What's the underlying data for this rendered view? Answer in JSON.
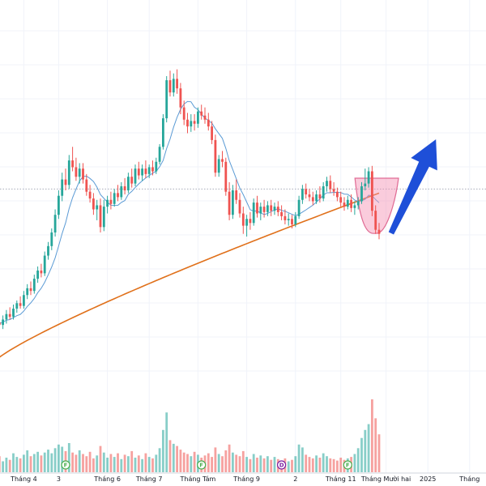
{
  "chart_data": {
    "type": "candlestick",
    "title": "",
    "xlabel": "",
    "ylabel": "",
    "x_tick_labels": [
      "Tháng 4",
      "3",
      "Tháng 6",
      "Tháng 7",
      "Tháng Tám",
      "Tháng 9",
      "2",
      "Tháng 11",
      "Tháng Mười hai",
      "2025",
      "Tháng"
    ],
    "colors": {
      "up": "#26a69a",
      "down": "#ef5350",
      "ma_short": "#5b9bd5",
      "ma_long": "#e0701a",
      "annotation_cup": "#f48fb1",
      "annotation_arrow": "#1e4fd8",
      "event_marker": "#4caf50",
      "dividend_marker": "#7b1fa2",
      "grid": "#f0f3fa"
    },
    "series": [
      {
        "name": "",
        "kind": "candles",
        "values": [
          [
            0,
            38.0,
            38.6,
            37.6,
            38.3
          ],
          [
            1,
            38.3,
            38.9,
            37.9,
            38.1
          ],
          [
            2,
            38.1,
            38.8,
            37.8,
            38.5
          ],
          [
            3,
            38.5,
            39.2,
            38.2,
            38.9
          ],
          [
            4,
            38.9,
            39.4,
            38.5,
            38.7
          ],
          [
            5,
            38.7,
            39.6,
            38.5,
            39.3
          ],
          [
            6,
            39.3,
            39.9,
            39.0,
            39.7
          ],
          [
            7,
            39.7,
            40.2,
            39.3,
            39.5
          ],
          [
            8,
            39.5,
            40.6,
            39.3,
            40.3
          ],
          [
            9,
            40.3,
            41.1,
            40.0,
            40.8
          ],
          [
            10,
            40.8,
            41.3,
            40.3,
            40.6
          ],
          [
            11,
            40.6,
            41.8,
            40.4,
            41.5
          ],
          [
            12,
            41.5,
            42.4,
            41.2,
            42.1
          ],
          [
            13,
            42.1,
            42.6,
            41.6,
            41.9
          ],
          [
            14,
            41.9,
            43.5,
            41.7,
            43.2
          ],
          [
            15,
            43.2,
            44.2,
            42.9,
            43.9
          ],
          [
            16,
            43.9,
            45.2,
            43.6,
            44.9
          ],
          [
            17,
            44.9,
            46.6,
            44.6,
            46.2
          ],
          [
            18,
            46.2,
            48.0,
            45.9,
            47.6
          ],
          [
            19,
            47.6,
            49.3,
            47.2,
            48.8
          ],
          [
            20,
            48.8,
            49.6,
            48.0,
            48.4
          ],
          [
            21,
            48.4,
            50.6,
            48.1,
            50.2
          ],
          [
            22,
            50.2,
            51.2,
            49.4,
            49.7
          ],
          [
            23,
            49.7,
            50.4,
            48.7,
            49.0
          ],
          [
            24,
            49.0,
            50.0,
            48.5,
            49.6
          ],
          [
            25,
            49.6,
            50.0,
            48.5,
            48.8
          ],
          [
            26,
            48.8,
            49.2,
            47.6,
            47.9
          ],
          [
            27,
            47.9,
            48.4,
            47.1,
            47.4
          ],
          [
            28,
            47.4,
            47.8,
            46.2,
            46.6
          ],
          [
            29,
            46.6,
            47.3,
            45.8,
            46.9
          ],
          [
            30,
            46.9,
            47.4,
            44.9,
            45.3
          ],
          [
            31,
            45.3,
            47.3,
            45.0,
            46.8
          ],
          [
            32,
            46.8,
            47.6,
            46.3,
            47.3
          ],
          [
            33,
            47.3,
            47.9,
            46.6,
            47.0
          ],
          [
            34,
            47.0,
            48.1,
            46.8,
            47.8
          ],
          [
            35,
            47.8,
            48.4,
            47.2,
            47.5
          ],
          [
            36,
            47.5,
            48.6,
            47.3,
            48.3
          ],
          [
            37,
            48.3,
            48.9,
            47.7,
            48.0
          ],
          [
            38,
            48.0,
            49.3,
            47.8,
            49.0
          ],
          [
            39,
            49.0,
            49.6,
            48.2,
            48.5
          ],
          [
            40,
            48.5,
            49.9,
            48.3,
            49.6
          ],
          [
            41,
            49.6,
            50.1,
            48.8,
            49.1
          ],
          [
            42,
            49.1,
            49.9,
            48.7,
            49.6
          ],
          [
            43,
            49.6,
            50.2,
            48.9,
            49.2
          ],
          [
            44,
            49.2,
            49.9,
            48.9,
            49.7
          ],
          [
            45,
            49.7,
            50.2,
            49.1,
            49.4
          ],
          [
            46,
            49.4,
            50.4,
            49.2,
            50.1
          ],
          [
            47,
            50.1,
            51.4,
            49.9,
            51.2
          ],
          [
            48,
            51.2,
            53.6,
            51.0,
            53.3
          ],
          [
            49,
            53.3,
            56.4,
            53.0,
            56.1
          ],
          [
            50,
            56.1,
            56.8,
            54.9,
            55.2
          ],
          [
            51,
            55.2,
            56.6,
            54.9,
            56.2
          ],
          [
            52,
            56.2,
            56.9,
            55.1,
            55.5
          ],
          [
            53,
            55.5,
            55.9,
            53.6,
            54.1
          ],
          [
            54,
            54.1,
            54.6,
            52.8,
            53.2
          ],
          [
            55,
            53.2,
            53.7,
            52.2,
            52.7
          ],
          [
            56,
            52.7,
            53.6,
            52.3,
            53.1
          ],
          [
            57,
            53.1,
            53.6,
            52.4,
            52.9
          ],
          [
            58,
            52.9,
            54.1,
            52.6,
            53.8
          ],
          [
            59,
            53.8,
            54.3,
            53.2,
            53.5
          ],
          [
            60,
            53.5,
            54.1,
            52.9,
            53.2
          ],
          [
            61,
            53.2,
            53.7,
            52.4,
            52.7
          ],
          [
            62,
            52.7,
            53.1,
            51.4,
            51.7
          ],
          [
            63,
            51.7,
            52.1,
            49.0,
            49.3
          ],
          [
            64,
            49.3,
            50.6,
            49.0,
            50.3
          ],
          [
            65,
            50.3,
            50.9,
            49.7,
            50.1
          ],
          [
            66,
            50.1,
            50.4,
            47.6,
            47.9
          ],
          [
            67,
            47.9,
            48.6,
            45.8,
            46.2
          ],
          [
            68,
            46.2,
            48.4,
            45.9,
            48.0
          ],
          [
            69,
            48.0,
            48.8,
            47.0,
            47.3
          ],
          [
            70,
            47.3,
            47.8,
            46.0,
            46.3
          ],
          [
            71,
            46.3,
            46.8,
            44.8,
            45.4
          ],
          [
            72,
            45.4,
            46.2,
            44.6,
            45.9
          ],
          [
            73,
            45.9,
            46.4,
            45.1,
            45.6
          ],
          [
            74,
            45.6,
            47.4,
            45.4,
            47.1
          ],
          [
            75,
            47.1,
            47.6,
            46.0,
            46.3
          ],
          [
            76,
            46.3,
            47.1,
            45.8,
            46.8
          ],
          [
            77,
            46.8,
            47.3,
            46.0,
            46.4
          ],
          [
            78,
            46.4,
            47.2,
            46.1,
            46.9
          ],
          [
            79,
            46.9,
            47.3,
            46.1,
            46.5
          ],
          [
            80,
            46.5,
            47.1,
            46.2,
            46.8
          ],
          [
            81,
            46.8,
            47.2,
            46.1,
            46.4
          ],
          [
            82,
            46.4,
            46.9,
            45.8,
            46.1
          ],
          [
            83,
            46.1,
            46.6,
            45.5,
            45.8
          ],
          [
            84,
            45.8,
            46.3,
            45.4,
            45.9
          ],
          [
            85,
            45.9,
            46.2,
            45.2,
            45.5
          ],
          [
            86,
            45.5,
            46.4,
            45.3,
            46.1
          ],
          [
            87,
            46.1,
            47.6,
            45.9,
            47.3
          ],
          [
            88,
            47.3,
            48.4,
            47.0,
            48.1
          ],
          [
            89,
            48.1,
            48.5,
            47.4,
            47.7
          ],
          [
            90,
            47.7,
            48.1,
            47.2,
            47.5
          ],
          [
            91,
            47.5,
            47.9,
            46.9,
            47.2
          ],
          [
            92,
            47.2,
            48.0,
            47.0,
            47.7
          ],
          [
            93,
            47.7,
            48.3,
            47.1,
            47.4
          ],
          [
            94,
            47.4,
            48.6,
            47.2,
            48.3
          ],
          [
            95,
            48.3,
            49.0,
            47.9,
            48.7
          ],
          [
            96,
            48.7,
            49.1,
            47.8,
            48.1
          ],
          [
            97,
            48.1,
            48.6,
            47.6,
            47.9
          ],
          [
            98,
            47.9,
            48.2,
            47.2,
            47.5
          ],
          [
            99,
            47.5,
            47.9,
            46.8,
            47.1
          ],
          [
            100,
            47.1,
            47.5,
            46.5,
            46.8
          ],
          [
            101,
            46.8,
            47.6,
            46.6,
            47.3
          ],
          [
            102,
            47.3,
            47.7,
            46.4,
            46.7
          ],
          [
            103,
            46.7,
            47.2,
            46.2,
            46.9
          ],
          [
            104,
            46.9,
            47.5,
            46.6,
            47.2
          ],
          [
            105,
            47.2,
            48.6,
            47.0,
            48.3
          ],
          [
            106,
            48.3,
            49.6,
            48.0,
            48.5
          ],
          [
            107,
            48.5,
            49.7,
            48.2,
            49.4
          ],
          [
            108,
            49.4,
            49.8,
            46.1,
            46.5
          ],
          [
            109,
            46.5,
            46.9,
            44.8,
            45.1
          ],
          [
            110,
            45.1,
            45.6,
            44.4,
            44.8
          ]
        ]
      },
      {
        "name": "",
        "kind": "line",
        "color_key": "ma_short",
        "note": "short moving average"
      },
      {
        "name": "",
        "kind": "line",
        "color_key": "ma_long",
        "note": "long moving average"
      }
    ],
    "volume": [
      18,
      22,
      15,
      20,
      17,
      26,
      21,
      19,
      24,
      30,
      22,
      25,
      28,
      23,
      27,
      31,
      26,
      33,
      38,
      35,
      29,
      40,
      27,
      24,
      30,
      25,
      22,
      28,
      19,
      23,
      36,
      27,
      20,
      25,
      21,
      26,
      18,
      24,
      22,
      29,
      20,
      23,
      18,
      26,
      21,
      19,
      24,
      33,
      58,
      82,
      44,
      39,
      36,
      31,
      27,
      25,
      22,
      28,
      24,
      20,
      23,
      26,
      21,
      34,
      25,
      22,
      30,
      38,
      27,
      24,
      22,
      29,
      21,
      18,
      25,
      20,
      23,
      19,
      22,
      17,
      21,
      18,
      16,
      19,
      15,
      17,
      22,
      38,
      34,
      24,
      21,
      19,
      23,
      20,
      26,
      22,
      19,
      18,
      16,
      20,
      17,
      19,
      21,
      25,
      33,
      47,
      58,
      66,
      100,
      74,
      52
    ],
    "x_tick_candle_index": [
      8,
      18,
      32,
      44,
      58,
      72,
      86,
      99,
      112,
      124,
      136
    ],
    "events": [
      {
        "label": "F",
        "index": 20,
        "color_key": "event_marker"
      },
      {
        "label": "F",
        "index": 59,
        "color_key": "event_marker"
      },
      {
        "label": "D",
        "index": 82,
        "color_key": "dividend_marker"
      },
      {
        "label": "F",
        "index": 101,
        "color_key": "event_marker"
      }
    ],
    "annotations": [
      {
        "kind": "cup",
        "from_index": 104,
        "to_index": 110,
        "color_key": "annotation_cup"
      },
      {
        "kind": "arrow-up",
        "from_index": 113,
        "to_index": 124,
        "color_key": "annotation_arrow"
      }
    ],
    "price_line": 48.1,
    "ylim": [
      34,
      62
    ],
    "grid": true,
    "legend": "none"
  }
}
